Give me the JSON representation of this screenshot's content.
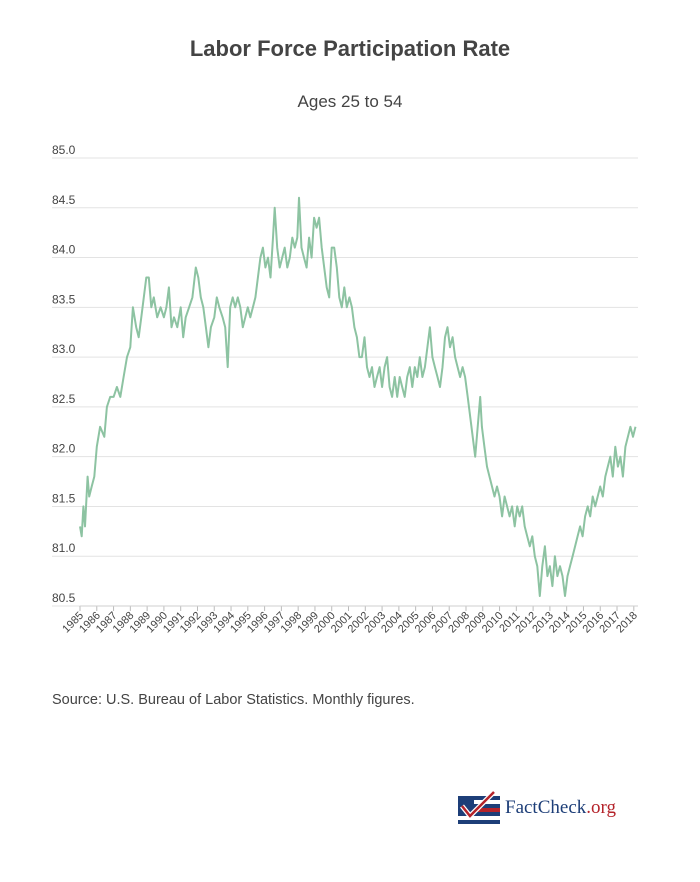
{
  "chart_data": {
    "type": "line",
    "title": "Labor Force Participation Rate",
    "subtitle": "Ages 25 to 54",
    "xlabel": "",
    "ylabel": "",
    "ylim": [
      80.5,
      85.0
    ],
    "yticks": [
      "85.0",
      "84.5",
      "84.0",
      "83.5",
      "83.0",
      "82.5",
      "82.0",
      "81.5",
      "81.0",
      "80.5"
    ],
    "xticks": [
      "1985",
      "1986",
      "1987",
      "1988",
      "1989",
      "1990",
      "1991",
      "1992",
      "1993",
      "1994",
      "1995",
      "1996",
      "1997",
      "1998",
      "1999",
      "2000",
      "2001",
      "2002",
      "2003",
      "2004",
      "2005",
      "2006",
      "2007",
      "2008",
      "2009",
      "2010",
      "2011",
      "2012",
      "2013",
      "2014",
      "2015",
      "2016",
      "2017",
      "2018"
    ],
    "xlim": [
      1985.0,
      2018.25
    ],
    "grid": true,
    "line_color": "#8dc3a2",
    "series": [
      {
        "name": "Labor Force Participation Rate, 25-54",
        "points": [
          [
            1985.0,
            81.3
          ],
          [
            1985.1,
            81.2
          ],
          [
            1985.2,
            81.5
          ],
          [
            1985.3,
            81.3
          ],
          [
            1985.45,
            81.8
          ],
          [
            1985.55,
            81.6
          ],
          [
            1985.7,
            81.7
          ],
          [
            1985.85,
            81.8
          ],
          [
            1986.0,
            82.1
          ],
          [
            1986.2,
            82.3
          ],
          [
            1986.45,
            82.2
          ],
          [
            1986.6,
            82.5
          ],
          [
            1986.8,
            82.6
          ],
          [
            1987.0,
            82.6
          ],
          [
            1987.2,
            82.7
          ],
          [
            1987.4,
            82.6
          ],
          [
            1987.6,
            82.8
          ],
          [
            1987.8,
            83.0
          ],
          [
            1988.0,
            83.1
          ],
          [
            1988.15,
            83.5
          ],
          [
            1988.35,
            83.3
          ],
          [
            1988.5,
            83.2
          ],
          [
            1988.65,
            83.4
          ],
          [
            1988.8,
            83.6
          ],
          [
            1988.95,
            83.8
          ],
          [
            1989.1,
            83.8
          ],
          [
            1989.25,
            83.5
          ],
          [
            1989.4,
            83.6
          ],
          [
            1989.6,
            83.4
          ],
          [
            1989.8,
            83.5
          ],
          [
            1990.0,
            83.4
          ],
          [
            1990.15,
            83.5
          ],
          [
            1990.3,
            83.7
          ],
          [
            1990.45,
            83.3
          ],
          [
            1990.6,
            83.4
          ],
          [
            1990.8,
            83.3
          ],
          [
            1991.0,
            83.5
          ],
          [
            1991.15,
            83.2
          ],
          [
            1991.3,
            83.4
          ],
          [
            1991.5,
            83.5
          ],
          [
            1991.7,
            83.6
          ],
          [
            1991.9,
            83.9
          ],
          [
            1992.05,
            83.8
          ],
          [
            1992.2,
            83.6
          ],
          [
            1992.35,
            83.5
          ],
          [
            1992.5,
            83.3
          ],
          [
            1992.65,
            83.1
          ],
          [
            1992.8,
            83.3
          ],
          [
            1993.0,
            83.4
          ],
          [
            1993.15,
            83.6
          ],
          [
            1993.3,
            83.5
          ],
          [
            1993.5,
            83.4
          ],
          [
            1993.65,
            83.3
          ],
          [
            1993.8,
            82.9
          ],
          [
            1993.95,
            83.5
          ],
          [
            1994.1,
            83.6
          ],
          [
            1994.25,
            83.5
          ],
          [
            1994.4,
            83.6
          ],
          [
            1994.55,
            83.5
          ],
          [
            1994.7,
            83.3
          ],
          [
            1994.85,
            83.4
          ],
          [
            1995.0,
            83.5
          ],
          [
            1995.15,
            83.4
          ],
          [
            1995.3,
            83.5
          ],
          [
            1995.45,
            83.6
          ],
          [
            1995.6,
            83.8
          ],
          [
            1995.75,
            84.0
          ],
          [
            1995.9,
            84.1
          ],
          [
            1996.05,
            83.9
          ],
          [
            1996.2,
            84.0
          ],
          [
            1996.35,
            83.8
          ],
          [
            1996.5,
            84.2
          ],
          [
            1996.6,
            84.5
          ],
          [
            1996.75,
            84.1
          ],
          [
            1996.9,
            83.9
          ],
          [
            1997.05,
            84.0
          ],
          [
            1997.2,
            84.1
          ],
          [
            1997.35,
            83.9
          ],
          [
            1997.5,
            84.0
          ],
          [
            1997.65,
            84.2
          ],
          [
            1997.8,
            84.1
          ],
          [
            1997.95,
            84.2
          ],
          [
            1998.05,
            84.6
          ],
          [
            1998.2,
            84.1
          ],
          [
            1998.35,
            84.0
          ],
          [
            1998.5,
            83.9
          ],
          [
            1998.65,
            84.2
          ],
          [
            1998.8,
            84.0
          ],
          [
            1998.95,
            84.4
          ],
          [
            1999.1,
            84.3
          ],
          [
            1999.25,
            84.4
          ],
          [
            1999.4,
            84.1
          ],
          [
            1999.55,
            83.9
          ],
          [
            1999.7,
            83.7
          ],
          [
            1999.85,
            83.6
          ],
          [
            2000.0,
            84.1
          ],
          [
            2000.15,
            84.1
          ],
          [
            2000.3,
            83.9
          ],
          [
            2000.45,
            83.6
          ],
          [
            2000.6,
            83.5
          ],
          [
            2000.75,
            83.7
          ],
          [
            2000.9,
            83.5
          ],
          [
            2001.05,
            83.6
          ],
          [
            2001.2,
            83.5
          ],
          [
            2001.35,
            83.3
          ],
          [
            2001.5,
            83.2
          ],
          [
            2001.65,
            83.0
          ],
          [
            2001.8,
            83.0
          ],
          [
            2001.95,
            83.2
          ],
          [
            2002.1,
            82.9
          ],
          [
            2002.25,
            82.8
          ],
          [
            2002.4,
            82.9
          ],
          [
            2002.55,
            82.7
          ],
          [
            2002.7,
            82.8
          ],
          [
            2002.85,
            82.9
          ],
          [
            2003.0,
            82.7
          ],
          [
            2003.15,
            82.9
          ],
          [
            2003.3,
            83.0
          ],
          [
            2003.45,
            82.7
          ],
          [
            2003.6,
            82.6
          ],
          [
            2003.75,
            82.8
          ],
          [
            2003.9,
            82.6
          ],
          [
            2004.05,
            82.8
          ],
          [
            2004.2,
            82.7
          ],
          [
            2004.35,
            82.6
          ],
          [
            2004.5,
            82.8
          ],
          [
            2004.65,
            82.9
          ],
          [
            2004.8,
            82.7
          ],
          [
            2004.95,
            82.9
          ],
          [
            2005.1,
            82.8
          ],
          [
            2005.25,
            83.0
          ],
          [
            2005.4,
            82.8
          ],
          [
            2005.55,
            82.9
          ],
          [
            2005.7,
            83.1
          ],
          [
            2005.85,
            83.3
          ],
          [
            2006.0,
            83.0
          ],
          [
            2006.15,
            82.9
          ],
          [
            2006.3,
            82.8
          ],
          [
            2006.45,
            82.7
          ],
          [
            2006.6,
            82.9
          ],
          [
            2006.75,
            83.2
          ],
          [
            2006.9,
            83.3
          ],
          [
            2007.05,
            83.1
          ],
          [
            2007.2,
            83.2
          ],
          [
            2007.35,
            83.0
          ],
          [
            2007.5,
            82.9
          ],
          [
            2007.65,
            82.8
          ],
          [
            2007.8,
            82.9
          ],
          [
            2007.95,
            82.8
          ],
          [
            2008.1,
            82.6
          ],
          [
            2008.25,
            82.4
          ],
          [
            2008.4,
            82.2
          ],
          [
            2008.55,
            82.0
          ],
          [
            2008.7,
            82.3
          ],
          [
            2008.85,
            82.6
          ],
          [
            2008.95,
            82.3
          ],
          [
            2009.1,
            82.1
          ],
          [
            2009.25,
            81.9
          ],
          [
            2009.4,
            81.8
          ],
          [
            2009.55,
            81.7
          ],
          [
            2009.7,
            81.6
          ],
          [
            2009.85,
            81.7
          ],
          [
            2010.0,
            81.6
          ],
          [
            2010.15,
            81.4
          ],
          [
            2010.3,
            81.6
          ],
          [
            2010.45,
            81.5
          ],
          [
            2010.6,
            81.4
          ],
          [
            2010.75,
            81.5
          ],
          [
            2010.9,
            81.3
          ],
          [
            2011.05,
            81.5
          ],
          [
            2011.2,
            81.4
          ],
          [
            2011.35,
            81.5
          ],
          [
            2011.5,
            81.3
          ],
          [
            2011.65,
            81.2
          ],
          [
            2011.8,
            81.1
          ],
          [
            2011.95,
            81.2
          ],
          [
            2012.1,
            81.0
          ],
          [
            2012.25,
            80.9
          ],
          [
            2012.4,
            80.6
          ],
          [
            2012.55,
            80.9
          ],
          [
            2012.7,
            81.1
          ],
          [
            2012.85,
            80.8
          ],
          [
            2013.0,
            80.9
          ],
          [
            2013.15,
            80.7
          ],
          [
            2013.3,
            81.0
          ],
          [
            2013.45,
            80.8
          ],
          [
            2013.6,
            80.9
          ],
          [
            2013.75,
            80.8
          ],
          [
            2013.9,
            80.6
          ],
          [
            2014.05,
            80.8
          ],
          [
            2014.2,
            80.9
          ],
          [
            2014.35,
            81.0
          ],
          [
            2014.5,
            81.1
          ],
          [
            2014.65,
            81.2
          ],
          [
            2014.8,
            81.3
          ],
          [
            2014.95,
            81.2
          ],
          [
            2015.1,
            81.4
          ],
          [
            2015.25,
            81.5
          ],
          [
            2015.4,
            81.4
          ],
          [
            2015.55,
            81.6
          ],
          [
            2015.7,
            81.5
          ],
          [
            2015.85,
            81.6
          ],
          [
            2016.0,
            81.7
          ],
          [
            2016.15,
            81.6
          ],
          [
            2016.3,
            81.8
          ],
          [
            2016.45,
            81.9
          ],
          [
            2016.6,
            82.0
          ],
          [
            2016.75,
            81.8
          ],
          [
            2016.9,
            82.1
          ],
          [
            2017.05,
            81.9
          ],
          [
            2017.2,
            82.0
          ],
          [
            2017.35,
            81.8
          ],
          [
            2017.5,
            82.1
          ],
          [
            2017.65,
            82.2
          ],
          [
            2017.8,
            82.3
          ],
          [
            2017.95,
            82.2
          ],
          [
            2018.1,
            82.3
          ]
        ]
      }
    ]
  },
  "source": "Source: U.S. Bureau of Labor Statistics. Monthly figures.",
  "logo": {
    "name": "FactCheck",
    "suffix": ".org",
    "colors": {
      "navy": "#1d3e78",
      "red": "#b5232a"
    }
  }
}
